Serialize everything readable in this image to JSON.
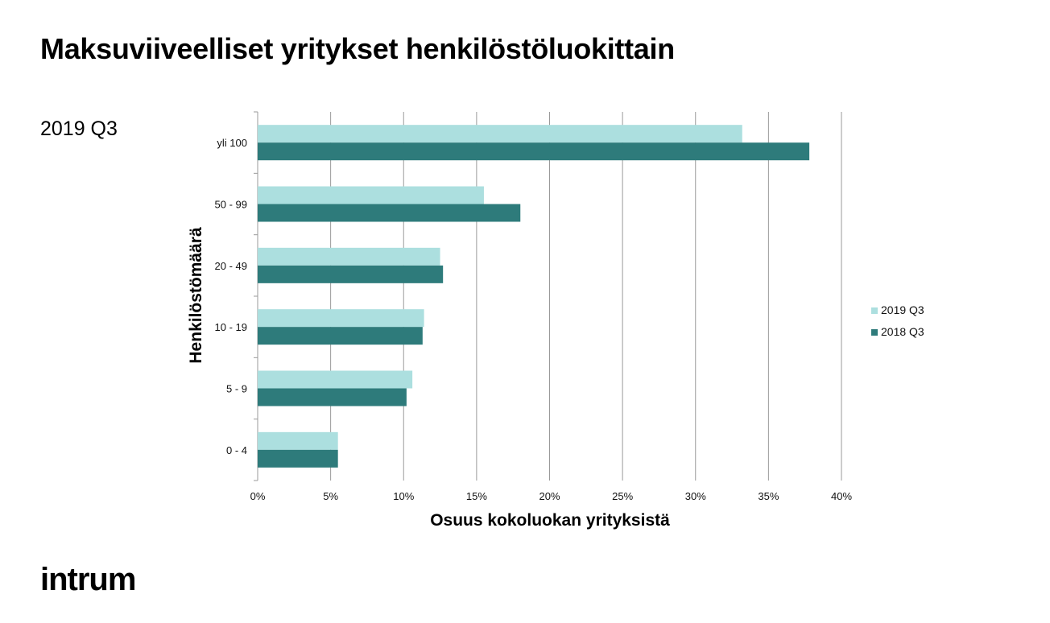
{
  "title": "Maksuviiveelliset yritykset henkilöstöluokittain",
  "period_label": "2019 Q3",
  "logo_text": "intrum",
  "colors": {
    "series_2019": "#acdfdf",
    "series_2018": "#2e7b7b",
    "grid": "#9a9a9a"
  },
  "chart_data": {
    "type": "bar",
    "orientation": "horizontal",
    "categories": [
      "yli 100",
      "50 - 99",
      "20 - 49",
      "10 - 19",
      "5 - 9",
      "0 - 4"
    ],
    "series": [
      {
        "name": "2019 Q3",
        "values": [
          33.2,
          15.5,
          12.5,
          11.4,
          10.6,
          5.5
        ]
      },
      {
        "name": "2018 Q3",
        "values": [
          37.8,
          18.0,
          12.7,
          11.3,
          10.2,
          5.5
        ]
      }
    ],
    "xlabel": "Osuus kokoluokan yrityksistä",
    "ylabel": "Henkilöstömäärä",
    "xlim": [
      0,
      40
    ],
    "xticks": [
      "0%",
      "5%",
      "10%",
      "15%",
      "20%",
      "25%",
      "30%",
      "35%",
      "40%"
    ],
    "grid": "vertical",
    "legend_position": "right"
  }
}
